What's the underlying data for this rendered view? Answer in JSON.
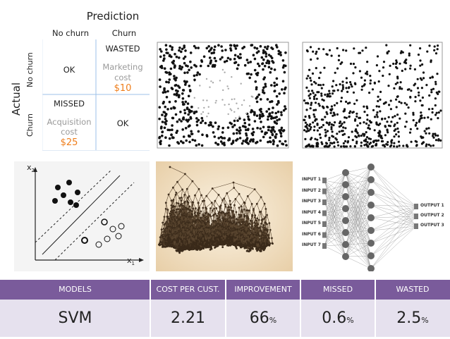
{
  "confusion_matrix": {
    "title": "Prediction",
    "col_labels": [
      "No churn",
      "Churn"
    ],
    "row_axis_label": "Actual",
    "row_labels": [
      "No churn",
      "Churn"
    ],
    "cells": {
      "nochurn_nochurn": "OK",
      "nochurn_churn_label": "WASTED",
      "nochurn_churn_sub1": "Marketing",
      "nochurn_churn_sub2": "cost",
      "nochurn_churn_value": "$10",
      "churn_nochurn_label": "MISSED",
      "churn_nochurn_sub1": "Acquisition",
      "churn_nochurn_sub2": "cost",
      "churn_nochurn_value": "$25",
      "churn_churn": "OK"
    },
    "colors": {
      "line": "#9ec1e8",
      "accent": "#ef7d1a",
      "muted": "#9a9a9a"
    }
  },
  "svm_diagram": {
    "axis_x": "x",
    "axis_x_sub": "1",
    "axis_y": "x",
    "axis_y_sub": "2"
  },
  "neural_net": {
    "inputs": [
      "INPUT 1",
      "INPUT 2",
      "INPUT 3",
      "INPUT 4",
      "INPUT 5",
      "INPUT 6",
      "INPUT 7"
    ],
    "outputs": [
      "OUTPUT 1",
      "OUTPUT 2",
      "OUTPUT 3"
    ]
  },
  "results_table": {
    "headers": [
      "MODELS",
      "COST PER CUST.",
      "IMPROVEMENT",
      "MISSED",
      "WASTED"
    ],
    "row": {
      "model": "SVM",
      "cost_per_customer": "2.21",
      "improvement": "66",
      "improvement_unit": "%",
      "missed": "0.6",
      "missed_unit": "%",
      "wasted": "2.5",
      "wasted_unit": "%"
    },
    "colors": {
      "header_bg": "#7a5b9b",
      "body_bg": "#e6e1ee"
    }
  }
}
